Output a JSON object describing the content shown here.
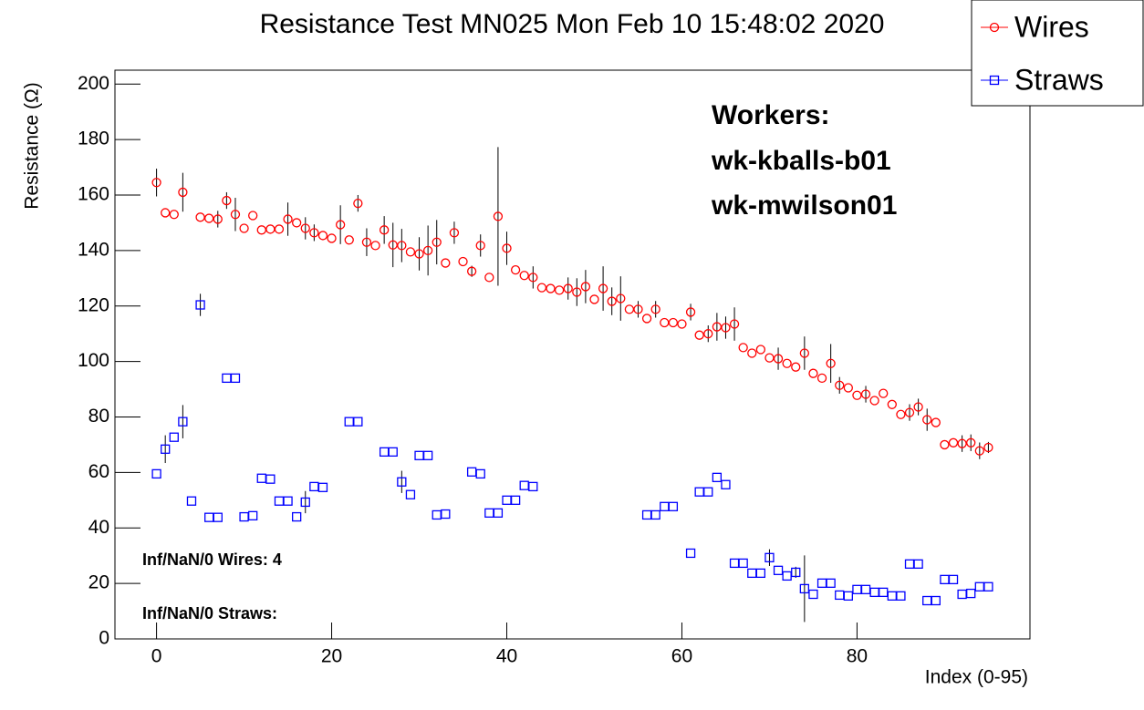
{
  "chart_data": {
    "type": "scatter",
    "title": "Resistance Test MN025 Mon Feb 10 15:48:02 2020",
    "x_label": "Index (0-95)",
    "y_label": "Resistance (Ω)",
    "xlim": [
      -4.75,
      99.75
    ],
    "xticks": [
      0,
      20,
      40,
      60,
      80
    ],
    "ylim": [
      0,
      205
    ],
    "yticks": [
      0,
      20,
      40,
      60,
      80,
      100,
      120,
      140,
      160,
      180,
      200
    ],
    "legend": "top-right",
    "annotations": [
      "Workers:",
      "wk-kballs-b01",
      "wk-mwilson01"
    ],
    "notes": [
      "Inf/NaN/0 Wires: 4",
      "Inf/NaN/0 Straws:"
    ],
    "x": [
      0,
      1,
      2,
      3,
      4,
      5,
      6,
      7,
      8,
      9,
      10,
      11,
      12,
      13,
      14,
      15,
      16,
      17,
      18,
      19,
      20,
      21,
      22,
      23,
      24,
      25,
      26,
      27,
      28,
      29,
      30,
      31,
      32,
      33,
      34,
      35,
      36,
      37,
      38,
      39,
      40,
      41,
      42,
      43,
      44,
      45,
      46,
      47,
      48,
      49,
      50,
      51,
      52,
      53,
      54,
      55,
      56,
      57,
      58,
      59,
      60,
      61,
      62,
      63,
      64,
      65,
      66,
      67,
      68,
      69,
      70,
      71,
      72,
      73,
      74,
      75,
      76,
      77,
      78,
      79,
      80,
      81,
      82,
      83,
      84,
      85,
      86,
      87,
      88,
      89,
      90,
      91,
      92,
      93,
      94,
      95
    ],
    "series": [
      {
        "name": "Wires",
        "color": "#ff0000",
        "marker": "circle",
        "values": [
          164.5,
          153.6,
          153,
          161,
          null,
          152,
          151.6,
          151.3,
          158,
          153,
          148,
          152.6,
          147.4,
          147.7,
          147.7,
          151.3,
          150,
          148,
          146.4,
          145.4,
          144.4,
          149.3,
          143.8,
          157,
          143,
          141.8,
          147.4,
          142,
          141.8,
          139.5,
          138.8,
          140,
          143,
          135.5,
          146.4,
          136,
          132.5,
          141.8,
          130.3,
          152.3,
          140.8,
          133,
          131,
          130.3,
          126.6,
          126.3,
          125.7,
          126.3,
          125,
          127,
          122.4,
          126.3,
          121.7,
          122.7,
          118.8,
          118.8,
          115.5,
          118.8,
          114,
          114,
          113.5,
          117.8,
          109.5,
          110,
          112.5,
          112.2,
          113.5,
          105,
          103,
          104.3,
          101.3,
          101,
          99.3,
          98,
          103,
          95.7,
          94,
          99.3,
          91.4,
          90.5,
          87.8,
          88.2,
          85.9,
          88.5,
          84.5,
          80.9,
          81.6,
          83.6,
          79,
          78,
          70,
          70.7,
          70.4,
          70.7,
          67.8,
          69
        ],
        "errors": [
          5,
          null,
          null,
          7,
          null,
          null,
          null,
          3,
          3,
          6,
          null,
          null,
          null,
          null,
          null,
          6,
          null,
          4,
          3,
          null,
          null,
          7,
          null,
          3,
          5,
          null,
          5,
          8,
          6,
          null,
          6,
          9,
          8,
          null,
          4,
          null,
          2,
          4,
          null,
          25,
          6,
          null,
          null,
          4,
          null,
          null,
          null,
          4,
          5,
          6,
          null,
          8,
          5,
          8,
          null,
          3,
          null,
          3,
          null,
          null,
          null,
          3,
          null,
          3,
          5,
          4,
          6,
          null,
          null,
          null,
          null,
          4,
          null,
          null,
          6,
          null,
          null,
          7,
          3,
          null,
          null,
          3,
          null,
          null,
          null,
          null,
          3,
          3,
          4,
          null,
          null,
          null,
          3,
          3,
          3,
          2
        ]
      },
      {
        "name": "Straws",
        "color": "#0000ff",
        "marker": "square",
        "values": [
          59.5,
          68.4,
          72.7,
          78.3,
          49.7,
          120.4,
          43.8,
          43.8,
          94,
          94,
          44,
          44.4,
          57.9,
          57.6,
          49.7,
          49.7,
          44,
          49.3,
          54.9,
          54.6,
          null,
          null,
          78.3,
          78.3,
          null,
          null,
          67.4,
          67.4,
          56.6,
          52,
          66.1,
          66.1,
          44.7,
          45,
          null,
          null,
          60.2,
          59.5,
          45.4,
          45.4,
          50,
          50,
          55.3,
          54.9,
          null,
          null,
          null,
          null,
          null,
          null,
          null,
          null,
          null,
          null,
          null,
          null,
          44.7,
          44.7,
          47.7,
          47.7,
          null,
          30.9,
          53,
          53,
          58.2,
          55.6,
          27.3,
          27.3,
          23.7,
          23.7,
          29.3,
          24.7,
          22.7,
          24,
          18.1,
          16.1,
          20.1,
          20.1,
          15.8,
          15.5,
          17.8,
          17.8,
          16.8,
          16.8,
          15.5,
          15.5,
          27,
          27,
          13.8,
          13.8,
          21.4,
          21.4,
          16.1,
          16.4,
          18.8,
          18.8
        ],
        "errors": [
          null,
          5,
          null,
          6,
          null,
          4,
          null,
          null,
          null,
          null,
          null,
          null,
          null,
          null,
          null,
          null,
          null,
          4,
          null,
          null,
          null,
          null,
          null,
          null,
          null,
          null,
          null,
          null,
          4,
          null,
          null,
          null,
          null,
          null,
          null,
          null,
          null,
          null,
          null,
          null,
          null,
          null,
          null,
          null,
          null,
          null,
          null,
          null,
          null,
          null,
          null,
          null,
          null,
          null,
          null,
          null,
          null,
          null,
          null,
          null,
          null,
          null,
          null,
          null,
          null,
          null,
          null,
          null,
          null,
          null,
          3,
          null,
          null,
          2,
          12,
          null,
          null,
          null,
          null,
          null,
          null,
          null,
          null,
          null,
          null,
          null,
          null,
          null,
          null,
          null,
          null,
          null,
          null,
          null,
          null,
          null
        ]
      }
    ]
  }
}
